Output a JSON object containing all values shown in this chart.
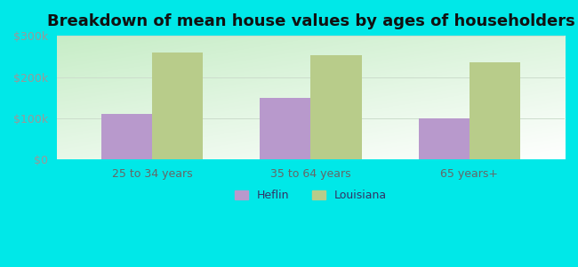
{
  "title": "Breakdown of mean house values by ages of householders",
  "categories": [
    "25 to 34 years",
    "35 to 64 years",
    "65 years+"
  ],
  "heflin_values": [
    110000,
    150000,
    100000
  ],
  "louisiana_values": [
    260000,
    252000,
    235000
  ],
  "heflin_color": "#b899cc",
  "louisiana_color": "#b8cc8a",
  "ylim": [
    0,
    300000
  ],
  "yticks": [
    0,
    100000,
    200000,
    300000
  ],
  "ytick_labels": [
    "$0",
    "$100k",
    "$200k",
    "$300k"
  ],
  "legend_heflin": "Heflin",
  "legend_louisiana": "Louisiana",
  "bg_color": "#00e8e8",
  "title_fontsize": 13,
  "bar_width": 0.32,
  "tick_color": "#999999",
  "grid_color": "#ccddcc"
}
